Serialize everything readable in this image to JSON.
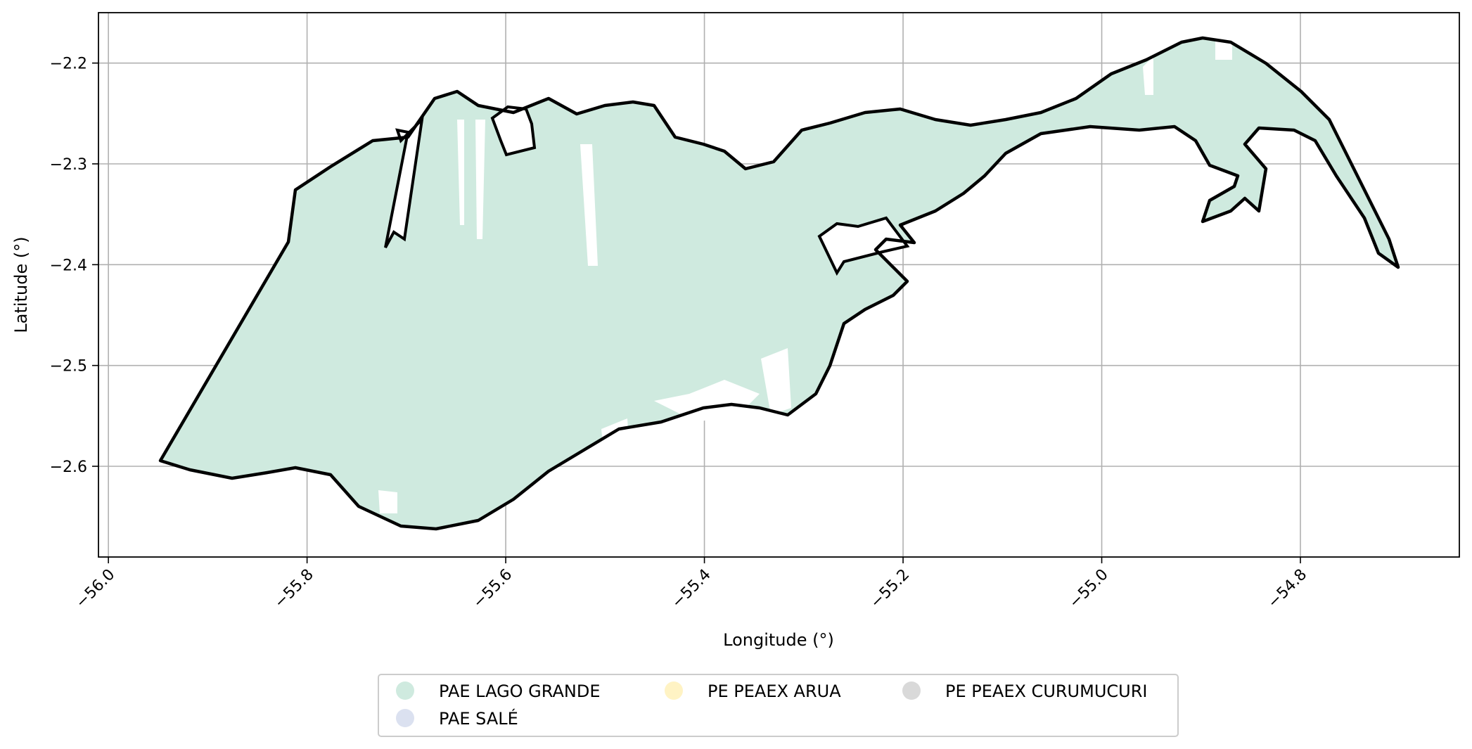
{
  "chart_data": {
    "type": "map",
    "xlabel": "Longitude (°)",
    "ylabel": "Latitude (°)",
    "xlim": [
      -56.01,
      -54.64
    ],
    "ylim": [
      -2.69,
      -2.15
    ],
    "x_ticks": [
      -56.0,
      -55.8,
      -55.6,
      -55.4,
      -55.2,
      -55.0,
      -54.8
    ],
    "x_tick_labels": [
      "−56.0",
      "−55.8",
      "−55.6",
      "−55.4",
      "−55.2",
      "−55.0",
      "−54.8"
    ],
    "y_ticks": [
      -2.2,
      -2.3,
      -2.4,
      -2.5,
      -2.6
    ],
    "y_tick_labels": [
      "−2.2",
      "−2.3",
      "−2.4",
      "−2.5",
      "−2.6"
    ],
    "grid": true,
    "legend_position": "bottom-center, outside plot",
    "legend": [
      {
        "label": "PAE LAGO GRANDE",
        "color": "#cfeadf"
      },
      {
        "label": "PAE SALÉ",
        "color": "#dbe1f0"
      },
      {
        "label": "PE PEAEX ARUA",
        "color": "#fff3c4"
      },
      {
        "label": "PE PEAEX CURUMUCURI",
        "color": "#d9d9d9"
      }
    ],
    "boundary_color": "#000000",
    "boundary_outline_lonlat": [
      [
        -55.95,
        -2.593
      ],
      [
        -55.8,
        -2.598
      ],
      [
        -55.75,
        -2.615
      ],
      [
        -55.7,
        -2.65
      ],
      [
        -55.65,
        -2.66
      ],
      [
        -55.6,
        -2.64
      ],
      [
        -55.55,
        -2.61
      ],
      [
        -55.5,
        -2.59
      ],
      [
        -55.45,
        -2.56
      ],
      [
        -55.4,
        -2.545
      ],
      [
        -55.36,
        -2.53
      ],
      [
        -55.3,
        -2.555
      ],
      [
        -55.26,
        -2.54
      ],
      [
        -55.22,
        -2.5
      ],
      [
        -55.19,
        -2.45
      ],
      [
        -55.195,
        -2.4
      ],
      [
        -55.23,
        -2.375
      ],
      [
        -55.26,
        -2.36
      ],
      [
        -55.19,
        -2.335
      ],
      [
        -55.14,
        -2.32
      ],
      [
        -55.1,
        -2.29
      ],
      [
        -55.05,
        -2.28
      ],
      [
        -55.0,
        -2.27
      ],
      [
        -54.95,
        -2.24
      ],
      [
        -54.92,
        -2.19
      ],
      [
        -54.87,
        -2.18
      ],
      [
        -54.83,
        -2.22
      ],
      [
        -54.8,
        -2.28
      ],
      [
        -54.77,
        -2.34
      ],
      [
        -54.745,
        -2.403
      ],
      [
        -54.8,
        -2.265
      ],
      [
        -54.86,
        -2.273
      ],
      [
        -54.88,
        -2.24
      ],
      [
        -54.95,
        -2.29
      ],
      [
        -55.0,
        -2.29
      ],
      [
        -55.1,
        -2.31
      ],
      [
        -55.18,
        -2.32
      ],
      [
        -55.25,
        -2.3
      ],
      [
        -55.3,
        -2.3
      ],
      [
        -55.35,
        -2.29
      ],
      [
        -55.4,
        -2.285
      ],
      [
        -55.45,
        -2.28
      ],
      [
        -55.5,
        -2.26
      ],
      [
        -55.55,
        -2.25
      ],
      [
        -55.6,
        -2.245
      ],
      [
        -55.65,
        -2.25
      ],
      [
        -55.7,
        -2.245
      ],
      [
        -55.75,
        -2.29
      ],
      [
        -55.8,
        -2.32
      ],
      [
        -55.82,
        -2.376
      ]
    ]
  }
}
